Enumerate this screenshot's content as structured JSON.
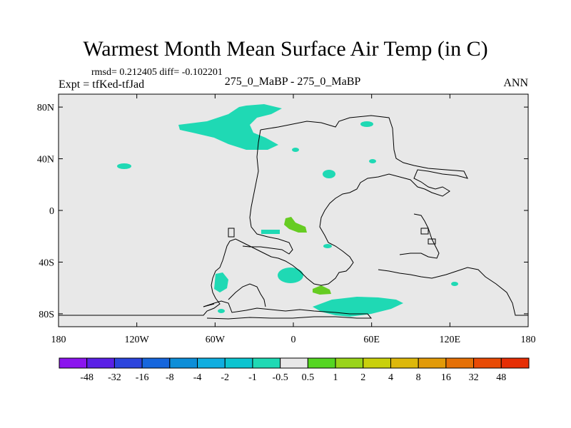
{
  "header": {
    "title": "Warmest Month Mean Surface Air Temp (in C)",
    "stats": "rmsd= 0.212405  diff= -0.102201",
    "expt": "Expt = tfKed-tfJad",
    "center": "275_0_MaBP - 275_0_MaBP",
    "season": "ANN"
  },
  "colors": {
    "background_map": "#e8e8e8",
    "anomaly_negative": "#1fd9b4",
    "anomaly_positive": "#66cc22",
    "outline": "#000000"
  },
  "chart_data": {
    "type": "heatmap",
    "title": "Warmest Month Mean Surface Air Temp (in C)",
    "x_ticks": [
      "180",
      "120W",
      "60W",
      "0",
      "60E",
      "120E",
      "180"
    ],
    "y_ticks": [
      "80N",
      "40N",
      "0",
      "40S",
      "80S"
    ],
    "xlim": [
      -180,
      180
    ],
    "ylim": [
      -90,
      90
    ],
    "colorbar": {
      "labels": [
        "-48",
        "-32",
        "-16",
        "-8",
        "-4",
        "-2",
        "-1",
        "-0.5",
        "0.5",
        "1",
        "2",
        "4",
        "8",
        "16",
        "32",
        "48"
      ],
      "colors": [
        "#8b14ee",
        "#5a20e6",
        "#2c44dd",
        "#1666dd",
        "#0d8ed8",
        "#10aee0",
        "#0cc4d0",
        "#1fd9b4",
        "#e8e8e8",
        "#55d622",
        "#99d41a",
        "#c9d00c",
        "#ddb80b",
        "#e29a08",
        "#e57006",
        "#e84a05",
        "#e62e05"
      ]
    },
    "regions": [
      {
        "value": -0.75,
        "lon": -60,
        "lat": 65
      },
      {
        "value": -0.75,
        "lon": -130,
        "lat": 34
      },
      {
        "value": -0.75,
        "lon": 27,
        "lat": 28
      },
      {
        "value": 0.75,
        "lon": -3,
        "lat": -14
      },
      {
        "value": -0.75,
        "lon": -18,
        "lat": -50
      },
      {
        "value": -0.75,
        "lon": -55,
        "lat": -55
      },
      {
        "value": 0.75,
        "lon": 21,
        "lat": -62
      },
      {
        "value": -0.75,
        "lon": 45,
        "lat": -72
      }
    ]
  }
}
